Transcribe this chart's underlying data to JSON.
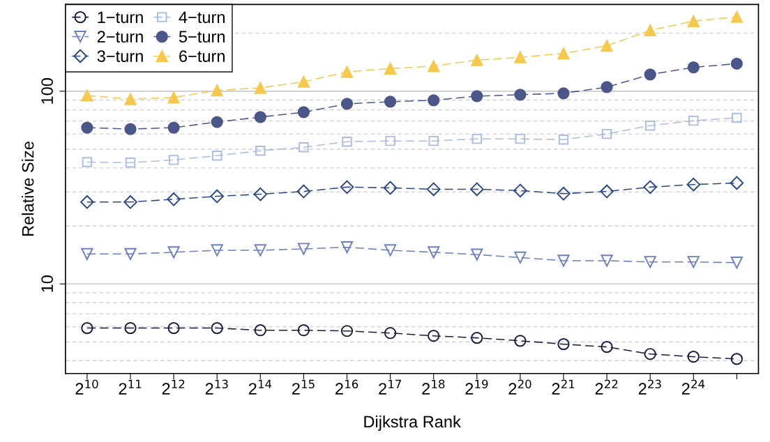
{
  "chart_data": {
    "type": "line",
    "xlabel": "Dijkstra Rank",
    "ylabel": "Relative Size",
    "categories": [
      "2$^{10}$",
      "2$^{11}$",
      "2$^{12}$",
      "2$^{13}$",
      "2$^{14}$",
      "2$^{15}$",
      "2$^{16}$",
      "2$^{17}$",
      "2$^{18}$",
      "2$^{19}$",
      "2$^{20}$",
      "2$^{21}$",
      "2$^{22}$",
      "2$^{23}$",
      "2$^{24}$",
      null
    ],
    "series": [
      {
        "name": "1−turn",
        "color": "#161d3c",
        "marker": "circle-open",
        "values": [
          5.9,
          5.9,
          5.9,
          5.9,
          5.75,
          5.75,
          5.7,
          5.56,
          5.38,
          5.25,
          5.07,
          4.87,
          4.71,
          4.33,
          4.19,
          4.08
        ]
      },
      {
        "name": "2−turn",
        "color": "#6b7fc4",
        "marker": "triangle-down-open",
        "values": [
          14.3,
          14.3,
          14.6,
          14.95,
          14.95,
          15.2,
          15.5,
          14.95,
          14.6,
          14.2,
          13.7,
          13.2,
          13.2,
          13.0,
          13.0,
          12.9
        ]
      },
      {
        "name": "3−turn",
        "color": "#2a4788",
        "marker": "diamond-open",
        "values": [
          26.6,
          26.6,
          27.5,
          28.5,
          29.2,
          30.2,
          31.8,
          31.5,
          31.0,
          31.0,
          30.5,
          29.4,
          30.2,
          31.8,
          32.8,
          33.4
        ]
      },
      {
        "name": "4−turn",
        "color": "#a9bde3",
        "marker": "square-open",
        "values": [
          42.9,
          42.6,
          44.0,
          46.3,
          49.1,
          51.2,
          54.7,
          55.2,
          55.2,
          56.6,
          56.6,
          56.1,
          60.0,
          66.3,
          70.3,
          72.8
        ]
      },
      {
        "name": "5−turn",
        "color": "#4a5788",
        "marker": "circle",
        "values": [
          64.7,
          63.6,
          64.7,
          69.2,
          73.4,
          77.8,
          86.0,
          88.2,
          89.7,
          94.3,
          95.9,
          97.5,
          105,
          122,
          133,
          139
        ]
      },
      {
        "name": "6−turn",
        "color": "#f6c84c",
        "marker": "triangle",
        "values": [
          95,
          91,
          92.7,
          101,
          104,
          112,
          126,
          131,
          135,
          145,
          150,
          157,
          172,
          207,
          231,
          243
        ]
      }
    ],
    "log": "y",
    "ylim": [
      3.43,
      282
    ],
    "yticks": [
      10,
      100
    ],
    "grid": "y",
    "legend": "top left",
    "line_style": "dashed"
  }
}
